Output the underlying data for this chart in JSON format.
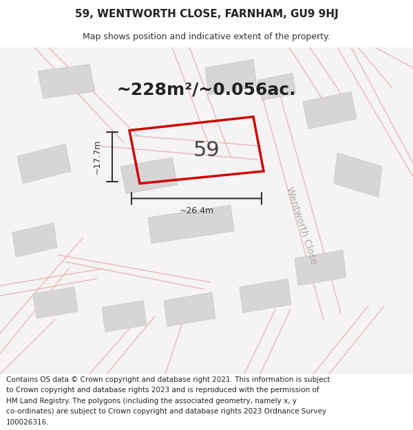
{
  "title_line1": "59, WENTWORTH CLOSE, FARNHAM, GU9 9HJ",
  "title_line2": "Map shows position and indicative extent of the property.",
  "area_text": "~228m²/~0.056ac.",
  "number_label": "59",
  "width_label": "~26.4m",
  "height_label": "~17.7m",
  "street_label": "Wentworth Close",
  "footer_lines": [
    "Contains OS data © Crown copyright and database right 2021. This information is subject",
    "to Crown copyright and database rights 2023 and is reproduced with the permission of",
    "HM Land Registry. The polygons (including the associated geometry, namely x, y",
    "co-ordinates) are subject to Crown copyright and database rights 2023 Ordnance Survey",
    "100026316."
  ],
  "map_bg_color": "#f5f3f3",
  "building_fill": "#d8d5d5",
  "building_edge": "#c8c5c5",
  "road_color": "#e8b8b8",
  "highlight_edge": "#cc0000",
  "highlight_lw": 2.5,
  "dim_line_color": "#333333",
  "title_fontsize": 11,
  "subtitle_fontsize": 9,
  "area_fontsize": 18,
  "number_fontsize": 22,
  "dim_fontsize": 9,
  "street_fontsize": 10,
  "footer_fontsize": 7.5
}
